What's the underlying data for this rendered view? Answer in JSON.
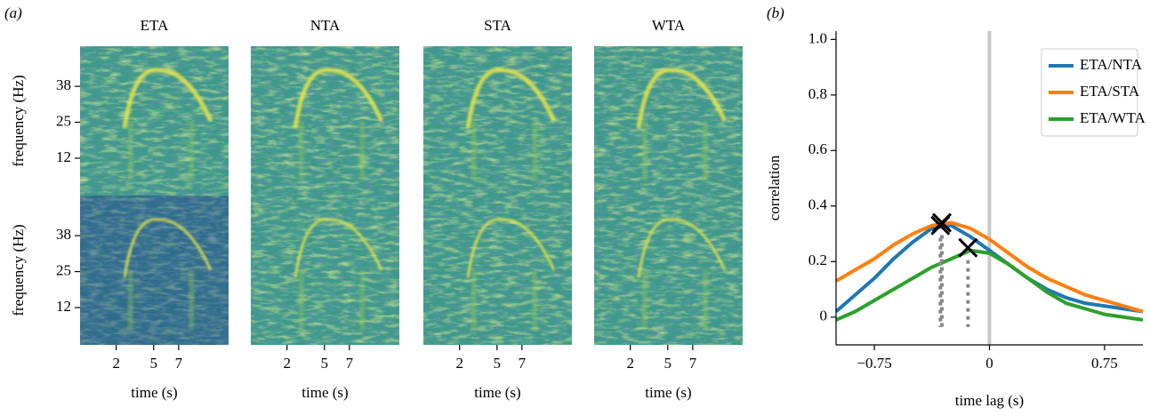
{
  "chart_data": [
    {
      "type": "spectrogram",
      "panel_label": "(a)",
      "titles": [
        "ETA",
        "NTA",
        "STA",
        "WTA"
      ],
      "xlabel": "time (s)",
      "ylabel": "frequency (Hz)",
      "xlim": [
        -0.9,
        11.0
      ],
      "xticks": [
        2,
        5,
        7
      ],
      "ylim": [
        -1.5,
        52.5
      ],
      "yticks": [
        12,
        25,
        38
      ]
    },
    {
      "type": "line",
      "panel_label": "(b)",
      "xlabel": "time lag (s)",
      "ylabel": "correlation",
      "xlim": [
        -1.0,
        1.0
      ],
      "ylim": [
        -0.1,
        1.03
      ],
      "xticks": [
        {
          "value": -0.75,
          "label": "−0.75"
        },
        0,
        0.75
      ],
      "yticks": [
        0,
        0.2,
        0.4,
        0.6,
        0.8,
        {
          "value": 1.0,
          "label": "1.0"
        }
      ],
      "vline": 0,
      "legend": "upper right",
      "x": [
        -1.0,
        -0.875,
        -0.75,
        -0.625,
        -0.5,
        -0.375,
        -0.25,
        -0.125,
        0,
        0.125,
        0.25,
        0.375,
        0.5,
        0.625,
        0.75,
        0.875,
        1.0
      ],
      "series": [
        {
          "name": "ETA/NTA",
          "color": "#1f77b4",
          "values": [
            0.02,
            0.08,
            0.14,
            0.21,
            0.27,
            0.32,
            0.33,
            0.29,
            0.24,
            0.19,
            0.14,
            0.1,
            0.07,
            0.05,
            0.04,
            0.03,
            0.02
          ],
          "peak_x": -0.32,
          "peak_y": 0.33
        },
        {
          "name": "ETA/STA",
          "color": "#ff7f0e",
          "values": [
            0.13,
            0.17,
            0.21,
            0.26,
            0.3,
            0.33,
            0.34,
            0.32,
            0.28,
            0.23,
            0.18,
            0.14,
            0.11,
            0.08,
            0.06,
            0.04,
            0.02
          ],
          "peak_x": -0.31,
          "peak_y": 0.34
        },
        {
          "name": "ETA/WTA",
          "color": "#2ca02c",
          "values": [
            -0.01,
            0.02,
            0.06,
            0.1,
            0.14,
            0.18,
            0.21,
            0.24,
            0.23,
            0.19,
            0.14,
            0.09,
            0.05,
            0.03,
            0.01,
            0.0,
            -0.01
          ],
          "peak_x": -0.14,
          "peak_y": 0.25
        }
      ]
    }
  ]
}
